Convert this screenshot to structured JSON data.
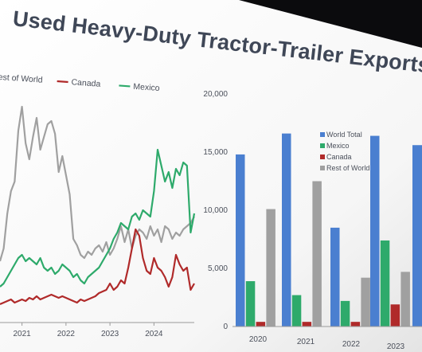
{
  "slide": {
    "title": "Used Heavy-Duty Tractor-Trailer Exports"
  },
  "colors": {
    "world_total": "#4a7fd0",
    "mexico": "#2eaa6b",
    "canada": "#b02a2a",
    "rest_of_world": "#a0a0a0",
    "axis_text": "#4a4f5a",
    "slide_background": "#ffffff",
    "title_text": "#3f4757"
  },
  "chart_data": [
    {
      "type": "line",
      "title": "",
      "legend": [
        "Rest of World",
        "Canada",
        "Mexico"
      ],
      "legend_text": [
        "est of World",
        "Canada",
        "Mexico"
      ],
      "legend_placement": "top",
      "grid": false,
      "x_ticks": [
        "2021",
        "2022",
        "2023",
        "2024"
      ],
      "x_range": [
        "2020-07",
        "2024-12"
      ],
      "y_range": [
        0,
        7000
      ],
      "y_axis_labels_visible": false,
      "series": [
        {
          "name": "Rest of World",
          "values": [
            [
              "2020-07",
              1800
            ],
            [
              "2020-08",
              2200
            ],
            [
              "2020-09",
              3300
            ],
            [
              "2020-10",
              4000
            ],
            [
              "2020-11",
              4300
            ],
            [
              "2020-12",
              5900
            ],
            [
              "2021-01",
              6650
            ],
            [
              "2021-02",
              5500
            ],
            [
              "2021-03",
              5000
            ],
            [
              "2021-04",
              5700
            ],
            [
              "2021-05",
              6300
            ],
            [
              "2021-06",
              5300
            ],
            [
              "2021-07",
              5700
            ],
            [
              "2021-08",
              6100
            ],
            [
              "2021-09",
              6200
            ],
            [
              "2021-10",
              5800
            ],
            [
              "2021-11",
              4600
            ],
            [
              "2021-12",
              5100
            ],
            [
              "2022-01",
              4500
            ],
            [
              "2022-02",
              3900
            ],
            [
              "2022-03",
              2500
            ],
            [
              "2022-04",
              2300
            ],
            [
              "2022-05",
              2000
            ],
            [
              "2022-06",
              1900
            ],
            [
              "2022-07",
              2100
            ],
            [
              "2022-08",
              2000
            ],
            [
              "2022-09",
              2200
            ],
            [
              "2022-10",
              2300
            ],
            [
              "2022-11",
              2100
            ],
            [
              "2022-12",
              2400
            ],
            [
              "2023-01",
              2000
            ],
            [
              "2023-02",
              2200
            ],
            [
              "2023-03",
              2500
            ],
            [
              "2023-04",
              2900
            ],
            [
              "2023-05",
              2400
            ],
            [
              "2023-06",
              2800
            ],
            [
              "2023-07",
              2200
            ],
            [
              "2023-08",
              2600
            ],
            [
              "2023-09",
              2800
            ],
            [
              "2023-10",
              2700
            ],
            [
              "2023-11",
              2500
            ],
            [
              "2023-12",
              2900
            ],
            [
              "2024-01",
              2600
            ],
            [
              "2024-02",
              2800
            ],
            [
              "2024-03",
              2400
            ],
            [
              "2024-04",
              2900
            ],
            [
              "2024-05",
              2800
            ],
            [
              "2024-06",
              2500
            ],
            [
              "2024-07",
              2700
            ],
            [
              "2024-08",
              2600
            ],
            [
              "2024-09",
              2800
            ],
            [
              "2024-10",
              2900
            ],
            [
              "2024-11",
              3000
            ],
            [
              "2024-12",
              3200
            ]
          ]
        },
        {
          "name": "Canada",
          "values": [
            [
              "2020-07",
              450
            ],
            [
              "2020-08",
              500
            ],
            [
              "2020-09",
              550
            ],
            [
              "2020-10",
              600
            ],
            [
              "2020-11",
              500
            ],
            [
              "2020-12",
              550
            ],
            [
              "2021-01",
              600
            ],
            [
              "2021-02",
              550
            ],
            [
              "2021-03",
              650
            ],
            [
              "2021-04",
              600
            ],
            [
              "2021-05",
              700
            ],
            [
              "2021-06",
              600
            ],
            [
              "2021-07",
              650
            ],
            [
              "2021-08",
              700
            ],
            [
              "2021-09",
              750
            ],
            [
              "2021-10",
              700
            ],
            [
              "2021-11",
              650
            ],
            [
              "2021-12",
              700
            ],
            [
              "2022-01",
              650
            ],
            [
              "2022-02",
              600
            ],
            [
              "2022-03",
              550
            ],
            [
              "2022-04",
              500
            ],
            [
              "2022-05",
              600
            ],
            [
              "2022-06",
              550
            ],
            [
              "2022-07",
              600
            ],
            [
              "2022-08",
              650
            ],
            [
              "2022-09",
              700
            ],
            [
              "2022-10",
              800
            ],
            [
              "2022-11",
              850
            ],
            [
              "2022-12",
              900
            ],
            [
              "2023-01",
              1100
            ],
            [
              "2023-02",
              900
            ],
            [
              "2023-03",
              1000
            ],
            [
              "2023-04",
              1200
            ],
            [
              "2023-05",
              1100
            ],
            [
              "2023-06",
              1600
            ],
            [
              "2023-07",
              2200
            ],
            [
              "2023-08",
              2800
            ],
            [
              "2023-09",
              2600
            ],
            [
              "2023-10",
              1900
            ],
            [
              "2023-11",
              1500
            ],
            [
              "2023-12",
              1400
            ],
            [
              "2024-01",
              1900
            ],
            [
              "2024-02",
              1600
            ],
            [
              "2024-03",
              1500
            ],
            [
              "2024-04",
              1300
            ],
            [
              "2024-05",
              1000
            ],
            [
              "2024-06",
              1300
            ],
            [
              "2024-07",
              2000
            ],
            [
              "2024-08",
              1700
            ],
            [
              "2024-09",
              1500
            ],
            [
              "2024-10",
              1600
            ],
            [
              "2024-11",
              900
            ],
            [
              "2024-12",
              1100
            ]
          ]
        },
        {
          "name": "Mexico",
          "values": [
            [
              "2020-07",
              1000
            ],
            [
              "2020-08",
              1100
            ],
            [
              "2020-09",
              1300
            ],
            [
              "2020-10",
              1500
            ],
            [
              "2020-11",
              1700
            ],
            [
              "2020-12",
              1900
            ],
            [
              "2021-01",
              2000
            ],
            [
              "2021-02",
              1800
            ],
            [
              "2021-03",
              1900
            ],
            [
              "2021-04",
              1800
            ],
            [
              "2021-05",
              1700
            ],
            [
              "2021-06",
              1900
            ],
            [
              "2021-07",
              1600
            ],
            [
              "2021-08",
              1500
            ],
            [
              "2021-09",
              1600
            ],
            [
              "2021-10",
              1400
            ],
            [
              "2021-11",
              1500
            ],
            [
              "2021-12",
              1700
            ],
            [
              "2022-01",
              1600
            ],
            [
              "2022-02",
              1500
            ],
            [
              "2022-03",
              1300
            ],
            [
              "2022-04",
              1400
            ],
            [
              "2022-05",
              1200
            ],
            [
              "2022-06",
              1100
            ],
            [
              "2022-07",
              1300
            ],
            [
              "2022-08",
              1400
            ],
            [
              "2022-09",
              1500
            ],
            [
              "2022-10",
              1600
            ],
            [
              "2022-11",
              1800
            ],
            [
              "2022-12",
              2000
            ],
            [
              "2023-01",
              2200
            ],
            [
              "2023-02",
              2500
            ],
            [
              "2023-03",
              2700
            ],
            [
              "2023-04",
              3000
            ],
            [
              "2023-05",
              2900
            ],
            [
              "2023-06",
              2800
            ],
            [
              "2023-07",
              3200
            ],
            [
              "2023-08",
              3300
            ],
            [
              "2023-09",
              3100
            ],
            [
              "2023-10",
              3400
            ],
            [
              "2023-11",
              3300
            ],
            [
              "2023-12",
              3200
            ],
            [
              "2024-01",
              4000
            ],
            [
              "2024-02",
              5300
            ],
            [
              "2024-03",
              4800
            ],
            [
              "2024-04",
              4300
            ],
            [
              "2024-05",
              4600
            ],
            [
              "2024-06",
              4100
            ],
            [
              "2024-07",
              4700
            ],
            [
              "2024-08",
              4500
            ],
            [
              "2024-09",
              4900
            ],
            [
              "2024-10",
              4800
            ],
            [
              "2024-11",
              2700
            ],
            [
              "2024-12",
              3300
            ]
          ]
        }
      ]
    },
    {
      "type": "bar",
      "title": "",
      "categories": [
        "2020",
        "2021",
        "2022",
        "2023"
      ],
      "series": [
        {
          "name": "World Total",
          "values": [
            14800,
            16600,
            8500,
            16400
          ]
        },
        {
          "name": "Mexico",
          "values": [
            3900,
            2700,
            2200,
            7400
          ]
        },
        {
          "name": "Canada",
          "values": [
            400,
            400,
            400,
            1900
          ]
        },
        {
          "name": "Rest of World",
          "values": [
            10100,
            12500,
            4200,
            4700
          ]
        }
      ],
      "partial_category": {
        "label": "",
        "values": [
          15600
        ]
      },
      "y_ticks": [
        "0",
        "5,000",
        "10,000",
        "15,000",
        "20,000"
      ],
      "ylim": [
        0,
        20000
      ],
      "legend_placement": "top-right",
      "grid": false
    }
  ]
}
